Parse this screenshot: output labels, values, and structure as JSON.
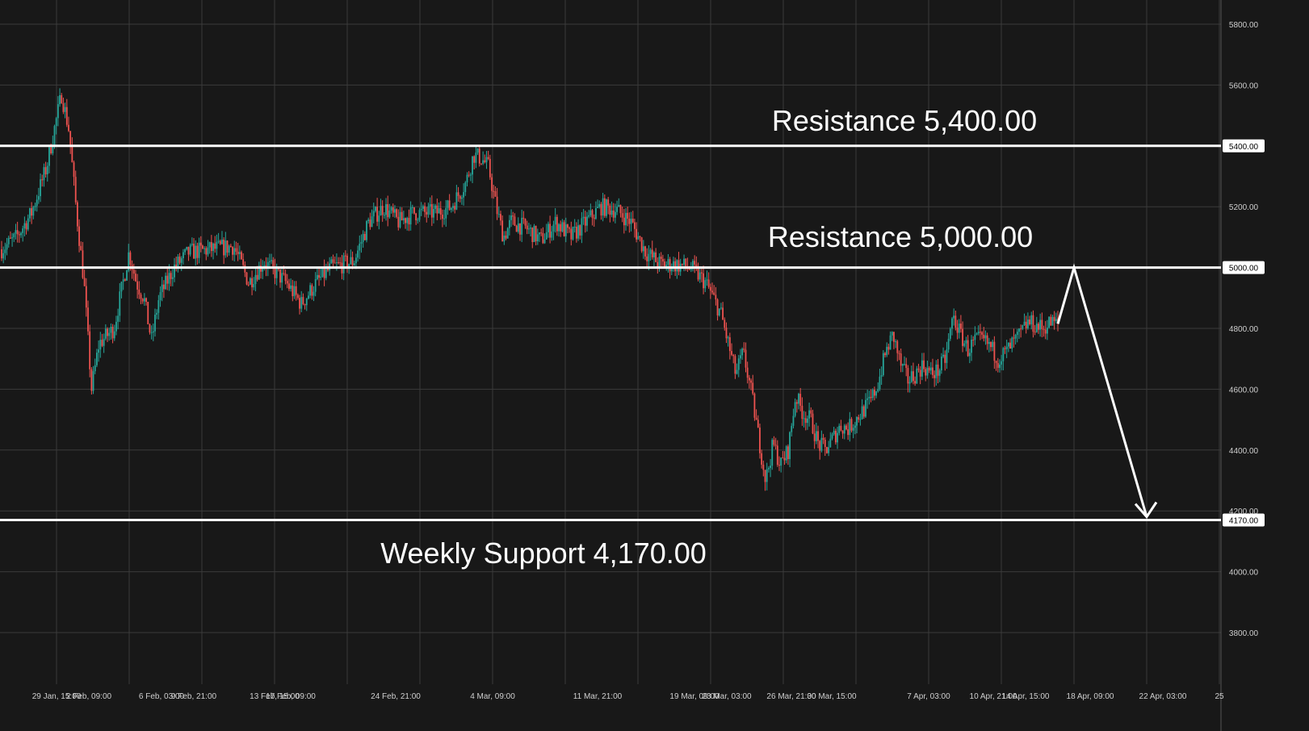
{
  "colors": {
    "background": "#181818",
    "grid": "#3a3a3a",
    "up_candle": "#26a69a",
    "down_candle": "#ef5350",
    "level_line": "#ffffff",
    "annotation_text": "#ffffff",
    "axis_text": "#cfcfcf"
  },
  "chart_data": {
    "type": "candlestick",
    "title": "",
    "ylim": [
      3650,
      5870
    ],
    "y_ticks": [
      "5800.00",
      "5600.00",
      "5200.00",
      "4800.00",
      "4600.00",
      "4400.00",
      "4200.00",
      "4000.00",
      "3800.00"
    ],
    "x_ticks": [
      "29 Jan, 15:00",
      "2 Feb, 09:00",
      "6 Feb, 03:00",
      "9 Feb, 21:00",
      "13 Feb, 15:00",
      "17 Feb, 09:00",
      "24 Feb, 21:00",
      "4 Mar, 09:00",
      "11 Mar, 21:00",
      "19 Mar, 09:00",
      "23 Mar, 03:00",
      "26 Mar, 21:00",
      "30 Mar, 15:00",
      "7 Apr, 03:00",
      "10 Apr, 21:00",
      "14 Apr, 15:00",
      "18 Apr, 09:00",
      "22 Apr, 03:00",
      "25"
    ],
    "price_path": [
      {
        "t": 0,
        "v": 5060
      },
      {
        "t": 2,
        "v": 5100
      },
      {
        "t": 4,
        "v": 5180
      },
      {
        "t": 6,
        "v": 5330
      },
      {
        "t": 8,
        "v": 5570
      },
      {
        "t": 9,
        "v": 5450
      },
      {
        "t": 10,
        "v": 5180
      },
      {
        "t": 11,
        "v": 4950
      },
      {
        "t": 12,
        "v": 4600
      },
      {
        "t": 13,
        "v": 4750
      },
      {
        "t": 15,
        "v": 4800
      },
      {
        "t": 17,
        "v": 5050
      },
      {
        "t": 18,
        "v": 4950
      },
      {
        "t": 19,
        "v": 4900
      },
      {
        "t": 20,
        "v": 4760
      },
      {
        "t": 21,
        "v": 4900
      },
      {
        "t": 23,
        "v": 5000
      },
      {
        "t": 25,
        "v": 5050
      },
      {
        "t": 28,
        "v": 5060
      },
      {
        "t": 31,
        "v": 5070
      },
      {
        "t": 33,
        "v": 4950
      },
      {
        "t": 35,
        "v": 5020
      },
      {
        "t": 38,
        "v": 4950
      },
      {
        "t": 40,
        "v": 4880
      },
      {
        "t": 42,
        "v": 4950
      },
      {
        "t": 44,
        "v": 5000
      },
      {
        "t": 47,
        "v": 5020
      },
      {
        "t": 49,
        "v": 5150
      },
      {
        "t": 51,
        "v": 5200
      },
      {
        "t": 53,
        "v": 5150
      },
      {
        "t": 55,
        "v": 5180
      },
      {
        "t": 58,
        "v": 5180
      },
      {
        "t": 60,
        "v": 5200
      },
      {
        "t": 62,
        "v": 5280
      },
      {
        "t": 63,
        "v": 5370
      },
      {
        "t": 64,
        "v": 5360
      },
      {
        "t": 65,
        "v": 5330
      },
      {
        "t": 66,
        "v": 5200
      },
      {
        "t": 67,
        "v": 5100
      },
      {
        "t": 68,
        "v": 5150
      },
      {
        "t": 70,
        "v": 5130
      },
      {
        "t": 72,
        "v": 5090
      },
      {
        "t": 74,
        "v": 5150
      },
      {
        "t": 76,
        "v": 5100
      },
      {
        "t": 78,
        "v": 5150
      },
      {
        "t": 80,
        "v": 5200
      },
      {
        "t": 82,
        "v": 5190
      },
      {
        "t": 84,
        "v": 5150
      },
      {
        "t": 86,
        "v": 5050
      },
      {
        "t": 88,
        "v": 5010
      },
      {
        "t": 90,
        "v": 5010
      },
      {
        "t": 92,
        "v": 5000
      },
      {
        "t": 94,
        "v": 4950
      },
      {
        "t": 96,
        "v": 4850
      },
      {
        "t": 98,
        "v": 4650
      },
      {
        "t": 99,
        "v": 4720
      },
      {
        "t": 100,
        "v": 4600
      },
      {
        "t": 101,
        "v": 4450
      },
      {
        "t": 102,
        "v": 4300
      },
      {
        "t": 103,
        "v": 4420
      },
      {
        "t": 104,
        "v": 4350
      },
      {
        "t": 105,
        "v": 4400
      },
      {
        "t": 106,
        "v": 4580
      },
      {
        "t": 107,
        "v": 4520
      },
      {
        "t": 108,
        "v": 4500
      },
      {
        "t": 109,
        "v": 4420
      },
      {
        "t": 110,
        "v": 4400
      },
      {
        "t": 111,
        "v": 4440
      },
      {
        "t": 112,
        "v": 4480
      },
      {
        "t": 113,
        "v": 4470
      },
      {
        "t": 114,
        "v": 4500
      },
      {
        "t": 115,
        "v": 4530
      },
      {
        "t": 116,
        "v": 4560
      },
      {
        "t": 117,
        "v": 4620
      },
      {
        "t": 118,
        "v": 4720
      },
      {
        "t": 119,
        "v": 4780
      },
      {
        "t": 120,
        "v": 4680
      },
      {
        "t": 121,
        "v": 4630
      },
      {
        "t": 122,
        "v": 4650
      },
      {
        "t": 123,
        "v": 4680
      },
      {
        "t": 124,
        "v": 4650
      },
      {
        "t": 125,
        "v": 4660
      },
      {
        "t": 126,
        "v": 4700
      },
      {
        "t": 127,
        "v": 4840
      },
      {
        "t": 128,
        "v": 4780
      },
      {
        "t": 129,
        "v": 4730
      },
      {
        "t": 130,
        "v": 4760
      },
      {
        "t": 131,
        "v": 4760
      },
      {
        "t": 132,
        "v": 4740
      },
      {
        "t": 133,
        "v": 4700
      },
      {
        "t": 134,
        "v": 4720
      },
      {
        "t": 135,
        "v": 4750
      },
      {
        "t": 136,
        "v": 4780
      },
      {
        "t": 137,
        "v": 4820
      },
      {
        "t": 138,
        "v": 4810
      },
      {
        "t": 139,
        "v": 4800
      },
      {
        "t": 140,
        "v": 4820
      },
      {
        "t": 141,
        "v": 4815
      }
    ],
    "projection": [
      {
        "label": "18 Apr, 09:00",
        "v": 5000
      },
      {
        "label": "22 Apr, 03:00",
        "v": 4170
      }
    ],
    "levels": [
      {
        "name": "Resistance 5,400.00",
        "value": 5400,
        "axis_label": "5400.00"
      },
      {
        "name": "Resistance 5,000.00",
        "value": 5000,
        "axis_label": "5000.00"
      },
      {
        "name": "Weekly Support 4,170.00",
        "value": 4170,
        "axis_label": "4170.00"
      }
    ]
  }
}
